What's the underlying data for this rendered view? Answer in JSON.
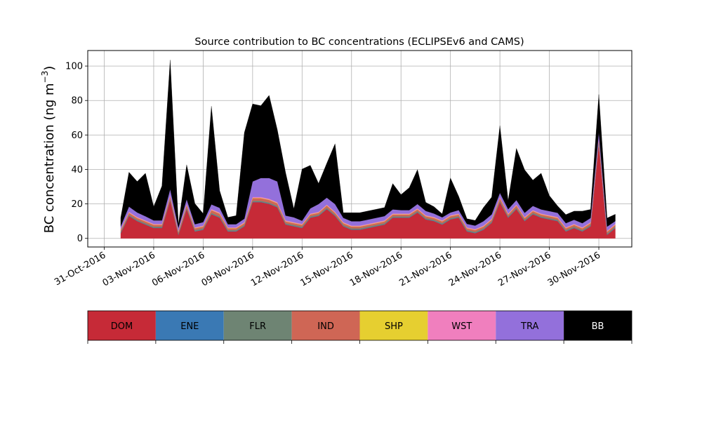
{
  "chart_data": {
    "type": "area",
    "stacked": true,
    "title": "Source contribution to BC concentrations (ECLIPSEv6 and CAMS)",
    "xlabel": "",
    "ylabel": "BC concentration (ng m",
    "ylabel_superscript": "−3",
    "ylabel_suffix": ")",
    "xlim": [
      "2016-10-30",
      "2016-12-02"
    ],
    "ylim": [
      -5,
      109
    ],
    "grid": true,
    "x_ticks": [
      "31-Oct-2016",
      "03-Nov-2016",
      "06-Nov-2016",
      "09-Nov-2016",
      "12-Nov-2016",
      "15-Nov-2016",
      "18-Nov-2016",
      "21-Nov-2016",
      "24-Nov-2016",
      "27-Nov-2016",
      "30-Nov-2016"
    ],
    "y_ticks": [
      "0",
      "20",
      "40",
      "60",
      "80",
      "100"
    ],
    "x": [
      "2016-11-01",
      "2016-11-01 12:00",
      "2016-11-02",
      "2016-11-02 12:00",
      "2016-11-03",
      "2016-11-03 12:00",
      "2016-11-04",
      "2016-11-04 12:00",
      "2016-11-05",
      "2016-11-05 12:00",
      "2016-11-06",
      "2016-11-06 12:00",
      "2016-11-07",
      "2016-11-07 12:00",
      "2016-11-08",
      "2016-11-08 12:00",
      "2016-11-09",
      "2016-11-09 12:00",
      "2016-11-10",
      "2016-11-10 12:00",
      "2016-11-11",
      "2016-11-11 12:00",
      "2016-11-12",
      "2016-11-12 12:00",
      "2016-11-13",
      "2016-11-13 12:00",
      "2016-11-14",
      "2016-11-14 12:00",
      "2016-11-15",
      "2016-11-15 12:00",
      "2016-11-16",
      "2016-11-16 12:00",
      "2016-11-17",
      "2016-11-17 12:00",
      "2016-11-18",
      "2016-11-18 12:00",
      "2016-11-19",
      "2016-11-19 12:00",
      "2016-11-20",
      "2016-11-20 12:00",
      "2016-11-21",
      "2016-11-21 12:00",
      "2016-11-22",
      "2016-11-22 12:00",
      "2016-11-23",
      "2016-11-23 12:00",
      "2016-11-24",
      "2016-11-24 12:00",
      "2016-11-25",
      "2016-11-25 12:00",
      "2016-11-26",
      "2016-11-26 12:00",
      "2016-11-27",
      "2016-11-27 12:00",
      "2016-11-28",
      "2016-11-28 12:00",
      "2016-11-29",
      "2016-11-29 12:00",
      "2016-11-30",
      "2016-11-30 12:00",
      "2016-12-01"
    ],
    "series": [
      {
        "name": "DOM",
        "color": "#c62a37",
        "values": [
          3,
          13,
          10,
          8,
          6,
          6,
          22,
          2,
          17,
          4,
          5,
          14,
          12,
          4,
          4,
          7,
          21,
          21,
          20,
          18,
          8,
          7,
          6,
          12,
          13,
          17,
          13,
          7,
          5,
          5,
          6,
          7,
          8,
          12,
          12,
          12,
          15,
          11,
          10,
          8,
          11,
          12,
          4,
          3,
          5,
          9,
          21,
          12,
          17,
          10,
          14,
          12,
          11,
          10,
          4,
          6,
          4,
          7,
          55,
          2,
          6
        ]
      },
      {
        "name": "ENE",
        "color": "#3a79b4",
        "values": [
          0.2,
          0.2,
          0.2,
          0.2,
          0.2,
          0.2,
          0.2,
          0.2,
          0.2,
          0.2,
          0.2,
          0.2,
          0.2,
          0.2,
          0.2,
          0.2,
          0.2,
          0.2,
          0.2,
          0.2,
          0.2,
          0.2,
          0.2,
          0.2,
          0.2,
          0.2,
          0.2,
          0.2,
          0.2,
          0.2,
          0.2,
          0.2,
          0.2,
          0.2,
          0.2,
          0.2,
          0.2,
          0.2,
          0.2,
          0.2,
          0.2,
          0.2,
          0.2,
          0.2,
          0.2,
          0.2,
          0.2,
          0.2,
          0.2,
          0.2,
          0.2,
          0.2,
          0.2,
          0.2,
          0.2,
          0.2,
          0.2,
          0.2,
          0.2,
          0.2,
          0.2
        ]
      },
      {
        "name": "FLR",
        "color": "#6e8473",
        "values": [
          0.6,
          0.6,
          0.6,
          0.6,
          0.6,
          0.6,
          0.6,
          0.6,
          0.6,
          0.6,
          0.6,
          0.6,
          0.6,
          0.6,
          0.6,
          0.6,
          0.6,
          0.6,
          0.6,
          0.6,
          0.6,
          0.6,
          0.6,
          0.6,
          0.6,
          0.6,
          0.6,
          0.6,
          0.6,
          0.6,
          0.6,
          0.6,
          0.6,
          0.6,
          0.6,
          0.6,
          0.6,
          0.6,
          0.6,
          0.6,
          0.6,
          0.6,
          0.6,
          0.6,
          0.6,
          0.6,
          0.6,
          0.6,
          0.6,
          0.6,
          0.6,
          0.6,
          0.6,
          0.6,
          0.6,
          0.6,
          0.6,
          0.6,
          0.6,
          0.6,
          0.6
        ]
      },
      {
        "name": "IND",
        "color": "#cf6655",
        "values": [
          1,
          1,
          1,
          1,
          1,
          1,
          1.5,
          1,
          1.5,
          1,
          1,
          1.5,
          1.5,
          1,
          1,
          1,
          1.5,
          1.5,
          1.5,
          1.5,
          1,
          1,
          1,
          1,
          1,
          1.2,
          1,
          1,
          1,
          1,
          1,
          1,
          1,
          1,
          1,
          1,
          1,
          1,
          1,
          1,
          1,
          1,
          1,
          1,
          1,
          1,
          1.5,
          1,
          1.2,
          1,
          1,
          1,
          1,
          1,
          1,
          1,
          1,
          1,
          1.5,
          1,
          1
        ]
      },
      {
        "name": "SHP",
        "color": "#e6cf30",
        "values": [
          0.2,
          0.2,
          0.2,
          0.2,
          0.2,
          0.2,
          0.2,
          0.2,
          0.2,
          0.2,
          0.2,
          0.2,
          0.2,
          0.2,
          0.2,
          0.2,
          0.2,
          0.2,
          0.2,
          0.2,
          0.2,
          0.2,
          0.2,
          0.2,
          0.2,
          0.2,
          0.2,
          0.2,
          0.2,
          0.2,
          0.2,
          0.2,
          0.2,
          0.2,
          0.2,
          0.2,
          0.2,
          0.2,
          0.2,
          0.2,
          0.2,
          0.2,
          0.2,
          0.2,
          0.2,
          0.2,
          0.2,
          0.2,
          0.2,
          0.2,
          0.2,
          0.2,
          0.2,
          0.2,
          0.2,
          0.2,
          0.2,
          0.2,
          0.2,
          0.2,
          0.2
        ]
      },
      {
        "name": "WST",
        "color": "#f07fbe",
        "values": [
          0.4,
          0.4,
          0.4,
          0.4,
          0.4,
          0.4,
          0.5,
          0.4,
          0.5,
          0.4,
          0.4,
          0.5,
          0.5,
          0.4,
          0.4,
          0.4,
          0.5,
          0.5,
          0.5,
          0.5,
          0.4,
          0.4,
          0.4,
          0.4,
          0.4,
          0.4,
          0.4,
          0.4,
          0.4,
          0.4,
          0.4,
          0.4,
          0.4,
          0.4,
          0.4,
          0.4,
          0.4,
          0.4,
          0.4,
          0.4,
          0.4,
          0.4,
          0.4,
          0.4,
          0.4,
          0.4,
          0.5,
          0.4,
          0.4,
          0.4,
          0.4,
          0.4,
          0.4,
          0.4,
          0.4,
          0.4,
          0.4,
          0.4,
          0.5,
          0.4,
          0.4
        ]
      },
      {
        "name": "TRA",
        "color": "#9370db",
        "values": [
          1.6,
          3,
          2.6,
          2.4,
          2,
          2,
          3.5,
          1.8,
          2.7,
          1.8,
          2,
          2.7,
          2.7,
          1.8,
          1.8,
          2,
          9,
          11,
          12,
          12,
          2.8,
          2.8,
          1.8,
          3,
          4.5,
          4,
          4.5,
          2.5,
          2.5,
          2.5,
          2.5,
          2.5,
          2.5,
          2.4,
          2,
          2,
          2.5,
          2.5,
          2,
          1.8,
          1.6,
          2,
          2,
          2,
          2.5,
          2.5,
          2.4,
          2.5,
          2.6,
          2.4,
          2.4,
          2.4,
          2.4,
          2.4,
          2.4,
          2.4,
          2.4,
          2.4,
          3.5,
          2.4,
          1.6
        ]
      },
      {
        "name": "BB",
        "color": "#000000",
        "values": [
          5,
          20,
          18,
          25,
          8,
          20,
          75,
          2,
          20,
          12,
          5,
          57,
          10,
          4,
          5,
          50,
          45,
          42,
          48,
          30,
          25,
          5,
          30,
          25,
          12,
          20,
          35,
          3,
          5,
          5,
          5,
          5,
          5,
          15,
          9,
          13,
          20,
          5,
          4,
          2,
          20,
          8,
          3,
          3,
          8,
          10,
          39,
          5,
          30,
          25,
          15,
          21,
          9,
          4,
          5,
          5,
          7,
          5,
          22,
          5,
          4
        ]
      }
    ]
  }
}
